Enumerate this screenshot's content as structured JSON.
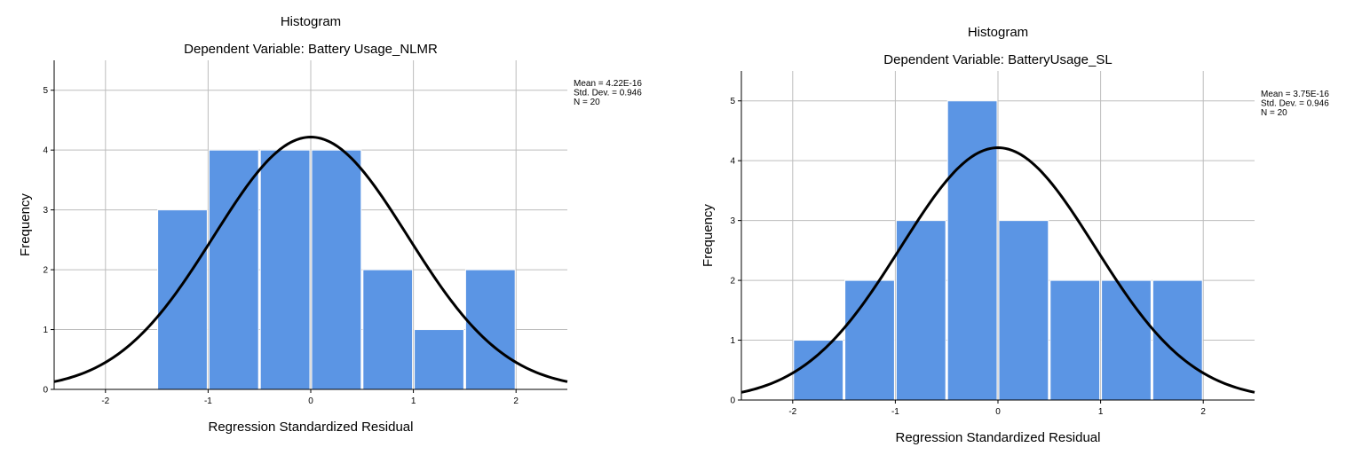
{
  "chart_data": [
    {
      "type": "bar",
      "title": "Histogram",
      "subtitle": "Dependent Variable: Battery Usage_NLMR",
      "xlabel": "Regression Standardized Residual",
      "ylabel": "Frequency",
      "xlim": [
        -2.5,
        2.5
      ],
      "ylim": [
        0,
        5.5
      ],
      "x_ticks": [
        "-2",
        "-1",
        "0",
        "1",
        "2"
      ],
      "y_ticks": [
        "0",
        "1",
        "2",
        "3",
        "4",
        "5"
      ],
      "grid": true,
      "bin_width": 0.5,
      "bins": [
        {
          "start": -1.5,
          "count": 3
        },
        {
          "start": -1.0,
          "count": 4
        },
        {
          "start": -0.5,
          "count": 4
        },
        {
          "start": 0.0,
          "count": 4
        },
        {
          "start": 0.5,
          "count": 2
        },
        {
          "start": 1.0,
          "count": 1
        },
        {
          "start": 1.5,
          "count": 2
        }
      ],
      "bar_color": "#5b95e4",
      "curve_color": "#000000",
      "normal_curve": {
        "mean": 4.22e-16,
        "sd": 0.946,
        "n": 20
      },
      "stats_text": [
        "Mean = 4.22E-16",
        "Std. Dev. = 0.946",
        "N = 20"
      ],
      "stats_position": "top-right"
    },
    {
      "type": "bar",
      "title": "Histogram",
      "subtitle": "Dependent Variable: BatteryUsage_SL",
      "xlabel": "Regression Standardized Residual",
      "ylabel": "Frequency",
      "xlim": [
        -2.5,
        2.5
      ],
      "ylim": [
        0,
        5.5
      ],
      "x_ticks": [
        "-2",
        "-1",
        "0",
        "1",
        "2"
      ],
      "y_ticks": [
        "0",
        "1",
        "2",
        "3",
        "4",
        "5"
      ],
      "grid": true,
      "bin_width": 0.5,
      "bins": [
        {
          "start": -2.0,
          "count": 1
        },
        {
          "start": -1.5,
          "count": 2
        },
        {
          "start": -1.0,
          "count": 3
        },
        {
          "start": -0.5,
          "count": 5
        },
        {
          "start": 0.0,
          "count": 3
        },
        {
          "start": 0.5,
          "count": 2
        },
        {
          "start": 1.0,
          "count": 2
        },
        {
          "start": 1.5,
          "count": 2
        }
      ],
      "bar_color": "#5b95e4",
      "curve_color": "#000000",
      "normal_curve": {
        "mean": 3.75e-16,
        "sd": 0.946,
        "n": 20
      },
      "stats_text": [
        "Mean = 3.75E-16",
        "Std. Dev. = 0.946",
        "N = 20"
      ],
      "stats_position": "top-right"
    }
  ]
}
